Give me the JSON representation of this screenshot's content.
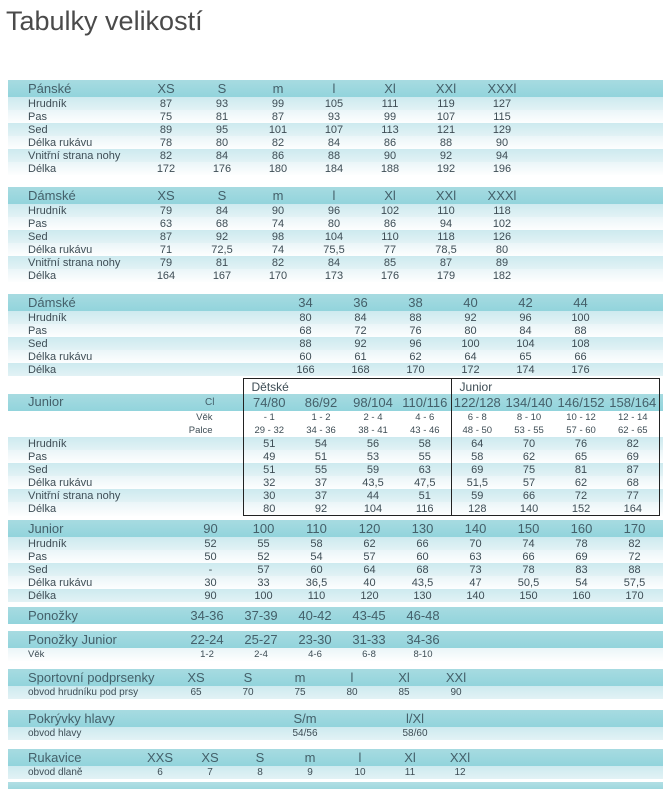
{
  "title": "Tabulky velikostí",
  "colors": {
    "header_bg": "#9bd7de",
    "row_light_cyan": "#d7edf1",
    "row_pale": "#eef7f9",
    "text": "#3e4d55",
    "header_text": "#44606a",
    "title_text": "#4a4a4a",
    "box_border": "#222222",
    "footer_strip": "#a9dce2"
  },
  "tables": [
    {
      "name": "Pánské",
      "sizes": [
        "XS",
        "S",
        "m",
        "l",
        "Xl",
        "XXl",
        "XXXl"
      ],
      "rows": [
        {
          "label": "Hrudník",
          "values": [
            "87",
            "93",
            "99",
            "105",
            "111",
            "119",
            "127"
          ]
        },
        {
          "label": "Pas",
          "values": [
            "75",
            "81",
            "87",
            "93",
            "99",
            "107",
            "115"
          ]
        },
        {
          "label": "Sed",
          "values": [
            "89",
            "95",
            "101",
            "107",
            "113",
            "121",
            "129"
          ]
        },
        {
          "label": "Délka rukávu",
          "values": [
            "78",
            "80",
            "82",
            "84",
            "86",
            "88",
            "90"
          ]
        },
        {
          "label": "Vnitřní strana nohy",
          "values": [
            "82",
            "84",
            "86",
            "88",
            "90",
            "92",
            "94"
          ]
        },
        {
          "label": "Délka",
          "values": [
            "172",
            "176",
            "180",
            "184",
            "188",
            "192",
            "196"
          ]
        }
      ]
    },
    {
      "name": "Dámské",
      "sizes": [
        "XS",
        "S",
        "m",
        "l",
        "Xl",
        "XXl",
        "XXXl"
      ],
      "rows": [
        {
          "label": "Hrudník",
          "values": [
            "79",
            "84",
            "90",
            "96",
            "102",
            "110",
            "118"
          ]
        },
        {
          "label": "Pas",
          "values": [
            "63",
            "68",
            "74",
            "80",
            "86",
            "94",
            "102"
          ]
        },
        {
          "label": "Sed",
          "values": [
            "87",
            "92",
            "98",
            "104",
            "110",
            "118",
            "126"
          ]
        },
        {
          "label": "Délka rukávu",
          "values": [
            "71",
            "72,5",
            "74",
            "75,5",
            "77",
            "78,5",
            "80"
          ]
        },
        {
          "label": "Vnitřní strana nohy",
          "values": [
            "79",
            "81",
            "82",
            "84",
            "85",
            "87",
            "89"
          ]
        },
        {
          "label": "Délka",
          "values": [
            "164",
            "167",
            "170",
            "173",
            "176",
            "179",
            "182"
          ]
        }
      ]
    },
    {
      "name": "Dámské",
      "sizes": [
        "34",
        "36",
        "38",
        "40",
        "42",
        "44"
      ],
      "rows": [
        {
          "label": "Hrudník",
          "values": [
            "80",
            "84",
            "88",
            "92",
            "96",
            "100"
          ]
        },
        {
          "label": "Pas",
          "values": [
            "68",
            "72",
            "76",
            "80",
            "84",
            "88"
          ]
        },
        {
          "label": "Sed",
          "values": [
            "88",
            "92",
            "96",
            "100",
            "104",
            "108"
          ]
        },
        {
          "label": "Délka rukávu",
          "values": [
            "60",
            "61",
            "62",
            "64",
            "65",
            "66"
          ]
        },
        {
          "label": "Délka",
          "values": [
            "166",
            "168",
            "170",
            "172",
            "174",
            "176"
          ]
        }
      ]
    },
    {
      "name": "Junior",
      "corner": "Cl",
      "groups": [
        {
          "label": "Dětské",
          "span": 4
        },
        {
          "label": "Junior",
          "span": 4
        }
      ],
      "sizes": [
        "74/80",
        "86/92",
        "98/104",
        "110/116",
        "122/128",
        "134/140",
        "146/152",
        "158/164"
      ],
      "sub_rows": [
        {
          "label": "Věk",
          "values": [
            "- 1",
            "1 - 2",
            "2 - 4",
            "4 - 6",
            "6 - 8",
            "8 - 10",
            "10 - 12",
            "12 - 14"
          ]
        },
        {
          "label": "Palce",
          "values": [
            "29 - 32",
            "34 - 36",
            "38 - 41",
            "43 - 46",
            "48 - 50",
            "53 - 55",
            "57 - 60",
            "62 - 65"
          ]
        }
      ],
      "rows": [
        {
          "label": "Hrudník",
          "values": [
            "51",
            "54",
            "56",
            "58",
            "64",
            "70",
            "76",
            "82"
          ]
        },
        {
          "label": "Pas",
          "values": [
            "49",
            "51",
            "53",
            "55",
            "58",
            "62",
            "65",
            "69"
          ]
        },
        {
          "label": "Sed",
          "values": [
            "51",
            "55",
            "59",
            "63",
            "69",
            "75",
            "81",
            "87"
          ]
        },
        {
          "label": "Délka rukávu",
          "values": [
            "32",
            "37",
            "43,5",
            "47,5",
            "51,5",
            "57",
            "62",
            "68"
          ]
        },
        {
          "label": "Vnitřní strana nohy",
          "values": [
            "30",
            "37",
            "44",
            "51",
            "59",
            "66",
            "72",
            "77"
          ]
        },
        {
          "label": "Délka",
          "values": [
            "80",
            "92",
            "104",
            "116",
            "128",
            "140",
            "152",
            "164"
          ]
        }
      ]
    },
    {
      "name": "Junior",
      "sizes": [
        "90",
        "100",
        "110",
        "120",
        "130",
        "140",
        "150",
        "160",
        "170"
      ],
      "rows": [
        {
          "label": "Hrudník",
          "values": [
            "52",
            "55",
            "58",
            "62",
            "66",
            "70",
            "74",
            "78",
            "82"
          ]
        },
        {
          "label": "Pas",
          "values": [
            "50",
            "52",
            "54",
            "57",
            "60",
            "63",
            "66",
            "69",
            "72"
          ]
        },
        {
          "label": "Sed",
          "values": [
            "-",
            "57",
            "60",
            "64",
            "68",
            "73",
            "78",
            "83",
            "88"
          ]
        },
        {
          "label": "Délka rukávu",
          "values": [
            "30",
            "33",
            "36,5",
            "40",
            "43,5",
            "47",
            "50,5",
            "54",
            "57,5"
          ]
        },
        {
          "label": "Délka",
          "values": [
            "90",
            "100",
            "110",
            "120",
            "130",
            "140",
            "150",
            "160",
            "170"
          ]
        }
      ]
    },
    {
      "name": "Ponožky",
      "sizes": [
        "34-36",
        "37-39",
        "40-42",
        "43-45",
        "46-48"
      ],
      "rows": []
    },
    {
      "name": "Ponožky Junior",
      "sizes": [
        "22-24",
        "25-27",
        "23-30",
        "31-33",
        "34-36"
      ],
      "sub_rows": [
        {
          "label": "Věk",
          "values": [
            "1-2",
            "2-4",
            "4-6",
            "6-8",
            "8-10"
          ]
        }
      ],
      "rows": []
    },
    {
      "name": "Sportovní podprsenky",
      "sizes": [
        "XS",
        "S",
        "m",
        "l",
        "Xl",
        "XXl"
      ],
      "rows": [
        {
          "label": "obvod hrudníku pod prsy",
          "values": [
            "65",
            "70",
            "75",
            "80",
            "85",
            "90"
          ]
        }
      ]
    },
    {
      "name": "Pokrývky hlavy",
      "sizes": [
        "S/m",
        "l/Xl"
      ],
      "rows": [
        {
          "label": "obvod hlavy",
          "values": [
            "54/56",
            "58/60"
          ]
        }
      ]
    },
    {
      "name": "Rukavice",
      "sizes": [
        "XXS",
        "XS",
        "S",
        "m",
        "l",
        "Xl",
        "XXl"
      ],
      "rows": [
        {
          "label": "obvod dlaně",
          "values": [
            "6",
            "7",
            "8",
            "9",
            "10",
            "11",
            "12"
          ]
        }
      ]
    }
  ]
}
